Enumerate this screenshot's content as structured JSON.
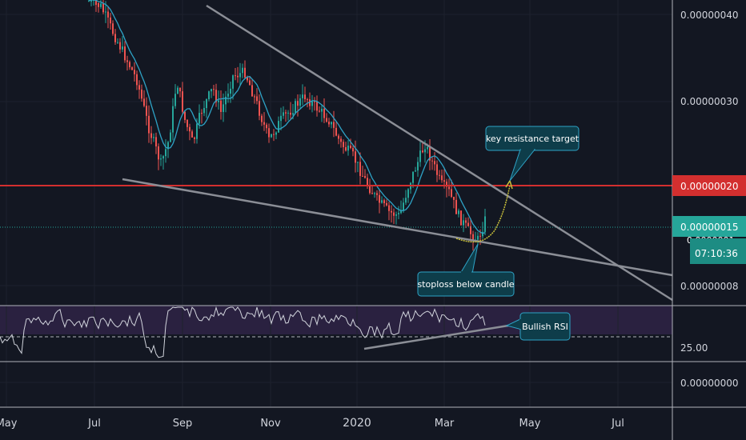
{
  "chart_data": {
    "type": "candlestick",
    "x_labels": [
      "May",
      "Jul",
      "Sep",
      "Nov",
      "2020",
      "Mar",
      "May",
      "Jul"
    ],
    "price_axis": {
      "ticks": [
        "0.00000040",
        "0.00000030",
        "0.00000008",
        "0.00000000"
      ],
      "current_price_label": "0.00000015",
      "countdown": "07:10:36",
      "level_label": "0.00000020",
      "hidden_partial_label": "0.0000001"
    },
    "rsi_axis": {
      "ticks": [
        "25.00"
      ]
    },
    "horizontal_level": {
      "value": 2e-07,
      "color": "#d32f2f"
    },
    "annotations": [
      {
        "text": "key resistance target"
      },
      {
        "text": "stoploss below candle"
      },
      {
        "text": "Bullish RSI"
      }
    ],
    "colors": {
      "bull": "#26a69a",
      "bear": "#ef5350",
      "ma": "#2ea3c6",
      "trendline": "#8b8e96",
      "projection": "#c9c03a",
      "rsi_line": "#d1d4dc",
      "rsi_band": "#2a2140",
      "current_price": "#26a69a",
      "level": "#d32f2f"
    }
  }
}
